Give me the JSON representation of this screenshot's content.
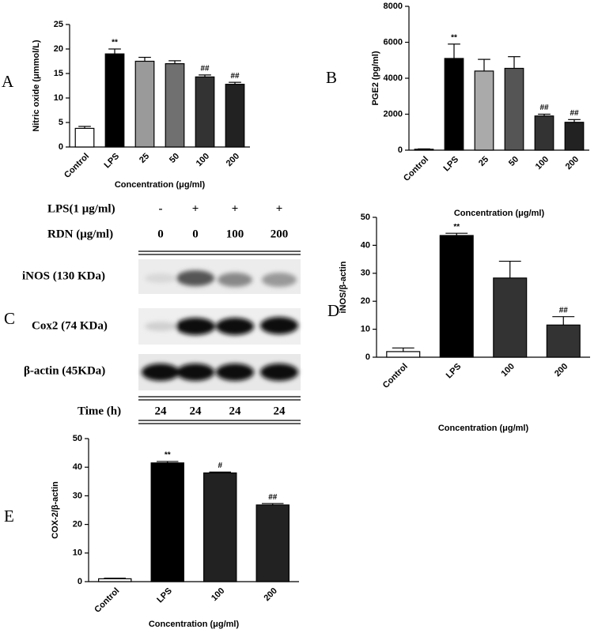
{
  "chart_data": [
    {
      "type": "bar",
      "panel": "A",
      "ylabel": "Nitric oxide (μmmol/L)",
      "xlabel": "Concentration (μg/ml)",
      "categories": [
        "Control",
        "LPS",
        "25",
        "50",
        "100",
        "200"
      ],
      "values": [
        3.8,
        19.0,
        17.5,
        17.0,
        14.3,
        12.8
      ],
      "errors": [
        0.4,
        1.0,
        0.8,
        0.6,
        0.4,
        0.4
      ],
      "annotations": [
        null,
        "**",
        null,
        null,
        "##",
        "##"
      ],
      "colors": [
        "#ffffff",
        "#000000",
        "#9a9a9a",
        "#707070",
        "#333333",
        "#222222"
      ],
      "ylim": [
        0,
        25
      ],
      "yticks": [
        0,
        5,
        10,
        15,
        20,
        25
      ]
    },
    {
      "type": "bar",
      "panel": "B",
      "ylabel": "PGE2 (pg/ml)",
      "xlabel": "Concentration (μg/ml)",
      "categories": [
        "Control",
        "LPS",
        "25",
        "50",
        "100",
        "200"
      ],
      "values": [
        50,
        5100,
        4400,
        4550,
        1900,
        1550
      ],
      "errors": [
        20,
        800,
        650,
        650,
        100,
        150
      ],
      "annotations": [
        null,
        "**",
        null,
        null,
        "##",
        "##"
      ],
      "colors": [
        "#ffffff",
        "#000000",
        "#aaaaaa",
        "#555555",
        "#333333",
        "#222222"
      ],
      "ylim": [
        0,
        8000
      ],
      "yticks": [
        0,
        2000,
        4000,
        6000,
        8000
      ]
    },
    {
      "type": "bar",
      "panel": "D",
      "ylabel": "iNOS/β-actin",
      "xlabel": "Concentration (μg/ml)",
      "categories": [
        "Control",
        "LPS",
        "100",
        "200"
      ],
      "values": [
        2.0,
        43.5,
        28.3,
        11.5
      ],
      "errors": [
        1.3,
        0.8,
        6.0,
        3.0
      ],
      "annotations": [
        null,
        "**",
        null,
        "##"
      ],
      "colors": [
        "#ffffff",
        "#000000",
        "#333333",
        "#333333"
      ],
      "ylim": [
        0,
        50
      ],
      "yticks": [
        0,
        10,
        20,
        30,
        40,
        50
      ]
    },
    {
      "type": "bar",
      "panel": "E",
      "ylabel": "COX-2/β-actin",
      "xlabel": "Concentration (μg/ml)",
      "categories": [
        "Control",
        "LPS",
        "100",
        "200"
      ],
      "values": [
        1.0,
        41.5,
        38.0,
        26.8
      ],
      "errors": [
        0.2,
        0.5,
        0.3,
        0.5
      ],
      "annotations": [
        null,
        "**",
        "#",
        "##"
      ],
      "colors": [
        "#ffffff",
        "#000000",
        "#222222",
        "#222222"
      ],
      "ylim": [
        0,
        50
      ],
      "yticks": [
        0,
        10,
        20,
        30,
        40,
        50
      ]
    }
  ],
  "blot": {
    "panel": "C",
    "treatments": [
      {
        "label": "LPS(1 μg/ml)",
        "values": [
          "-",
          "+",
          "+",
          "+"
        ]
      },
      {
        "label": "RDN (μg/ml)",
        "values": [
          0,
          0,
          100,
          200
        ]
      }
    ],
    "rows": [
      "iNOS (130 KDa)",
      "Cox2 (74 KDa)",
      "β-actin (45KDa)"
    ],
    "time": {
      "label": "Time (h)",
      "values": [
        24,
        24,
        24,
        24
      ]
    }
  }
}
